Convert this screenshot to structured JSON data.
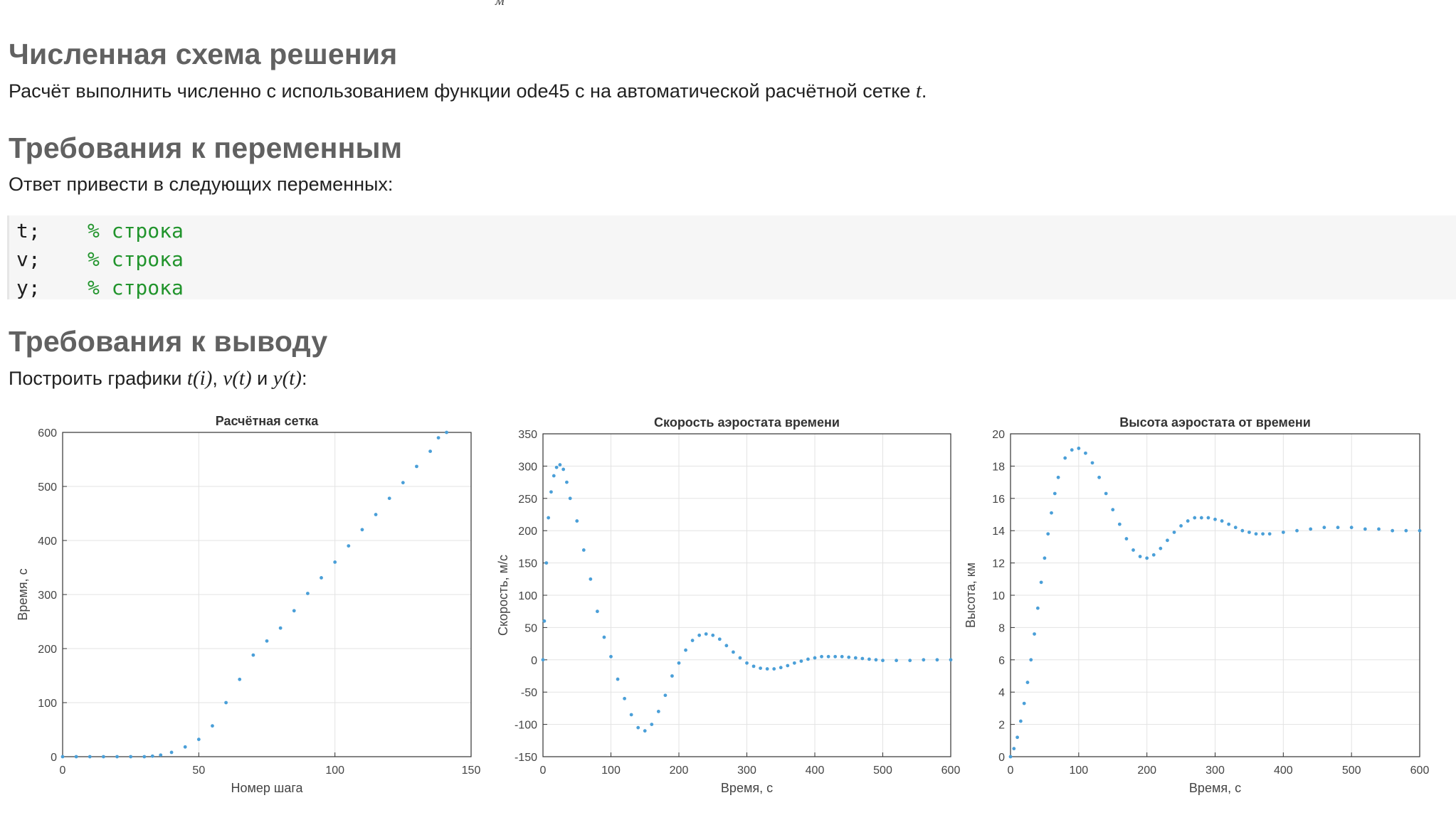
{
  "fragment": "м",
  "sections": [
    {
      "title": "Численная схема решения"
    },
    {
      "title": "Требования к переменным"
    },
    {
      "title": "Требования к выводу"
    }
  ],
  "scheme_text": {
    "before": "Расчёт выполнить численно с использованием функции ode45 с на автоматической расчётной сетке ",
    "var": "t",
    "after": "."
  },
  "vars_text": "Ответ привести в следующих переменных:",
  "code_lines": [
    {
      "var": "t;",
      "comment": "% строка"
    },
    {
      "var": "v;",
      "comment": "% строка"
    },
    {
      "var": "y;",
      "comment": "% строка"
    }
  ],
  "output_text": {
    "before": "Построить графики ",
    "m1": "t(i)",
    "sep1": ", ",
    "m2": "v(t)",
    "sep2": " и ",
    "m3": "y(t)",
    "after": ":"
  },
  "accent_color": "#4a9fd8",
  "chart_data": [
    {
      "type": "scatter",
      "title": "Расчётная сетка",
      "xlabel": "Номер шага",
      "ylabel": "Время, с",
      "xlim": [
        0,
        150
      ],
      "ylim": [
        0,
        600
      ],
      "xticks": [
        0,
        50,
        100,
        150
      ],
      "yticks": [
        0,
        100,
        200,
        300,
        400,
        500,
        600
      ],
      "grid": true,
      "series": [
        {
          "points": [
            [
              0,
              0
            ],
            [
              5,
              0
            ],
            [
              10,
              0
            ],
            [
              15,
              0
            ],
            [
              20,
              0
            ],
            [
              25,
              0
            ],
            [
              30,
              0
            ],
            [
              33,
              1
            ],
            [
              36,
              3
            ],
            [
              40,
              8
            ],
            [
              45,
              18
            ],
            [
              50,
              32
            ],
            [
              55,
              57
            ],
            [
              60,
              100
            ],
            [
              65,
              143
            ],
            [
              70,
              188
            ],
            [
              75,
              214
            ],
            [
              80,
              238
            ],
            [
              85,
              270
            ],
            [
              90,
              302
            ],
            [
              95,
              331
            ],
            [
              100,
              360
            ],
            [
              105,
              390
            ],
            [
              110,
              420
            ],
            [
              115,
              448
            ],
            [
              120,
              478
            ],
            [
              125,
              507
            ],
            [
              130,
              537
            ],
            [
              135,
              565
            ],
            [
              138,
              590
            ],
            [
              141,
              600
            ]
          ]
        }
      ]
    },
    {
      "type": "scatter",
      "title": "Скорость аэростата времени",
      "xlabel": "Время, с",
      "ylabel": "Скорость, м/с",
      "xlim": [
        0,
        600
      ],
      "ylim": [
        -150,
        350
      ],
      "xticks": [
        0,
        100,
        200,
        300,
        400,
        500,
        600
      ],
      "yticks": [
        -150,
        -100,
        -50,
        0,
        50,
        100,
        150,
        200,
        250,
        300,
        350
      ],
      "grid": true,
      "series": [
        {
          "points": [
            [
              0,
              0
            ],
            [
              2,
              60
            ],
            [
              5,
              150
            ],
            [
              8,
              220
            ],
            [
              12,
              260
            ],
            [
              16,
              285
            ],
            [
              20,
              298
            ],
            [
              25,
              302
            ],
            [
              30,
              295
            ],
            [
              35,
              275
            ],
            [
              40,
              250
            ],
            [
              50,
              215
            ],
            [
              60,
              170
            ],
            [
              70,
              125
            ],
            [
              80,
              75
            ],
            [
              90,
              35
            ],
            [
              100,
              5
            ],
            [
              110,
              -30
            ],
            [
              120,
              -60
            ],
            [
              130,
              -85
            ],
            [
              140,
              -105
            ],
            [
              150,
              -110
            ],
            [
              160,
              -100
            ],
            [
              170,
              -80
            ],
            [
              180,
              -55
            ],
            [
              190,
              -25
            ],
            [
              200,
              -5
            ],
            [
              210,
              15
            ],
            [
              220,
              30
            ],
            [
              230,
              38
            ],
            [
              240,
              40
            ],
            [
              250,
              38
            ],
            [
              260,
              32
            ],
            [
              270,
              22
            ],
            [
              280,
              12
            ],
            [
              290,
              3
            ],
            [
              300,
              -5
            ],
            [
              310,
              -10
            ],
            [
              320,
              -13
            ],
            [
              330,
              -14
            ],
            [
              340,
              -14
            ],
            [
              350,
              -12
            ],
            [
              360,
              -9
            ],
            [
              370,
              -5
            ],
            [
              380,
              -2
            ],
            [
              390,
              1
            ],
            [
              400,
              3
            ],
            [
              410,
              5
            ],
            [
              420,
              5
            ],
            [
              430,
              5
            ],
            [
              440,
              5
            ],
            [
              450,
              4
            ],
            [
              460,
              3
            ],
            [
              470,
              2
            ],
            [
              480,
              1
            ],
            [
              490,
              0
            ],
            [
              500,
              -1
            ],
            [
              520,
              -1
            ],
            [
              540,
              -1
            ],
            [
              560,
              0
            ],
            [
              580,
              0
            ],
            [
              600,
              0
            ]
          ]
        }
      ]
    },
    {
      "type": "scatter",
      "title": "Высота аэростата от времени",
      "xlabel": "Время, с",
      "ylabel": "Высота, км",
      "xlim": [
        0,
        600
      ],
      "ylim": [
        0,
        20
      ],
      "xticks": [
        0,
        100,
        200,
        300,
        400,
        500,
        600
      ],
      "yticks": [
        0,
        2,
        4,
        6,
        8,
        10,
        12,
        14,
        16,
        18,
        20
      ],
      "grid": true,
      "series": [
        {
          "points": [
            [
              0,
              0
            ],
            [
              5,
              0.5
            ],
            [
              10,
              1.2
            ],
            [
              15,
              2.2
            ],
            [
              20,
              3.3
            ],
            [
              25,
              4.6
            ],
            [
              30,
              6.0
            ],
            [
              35,
              7.6
            ],
            [
              40,
              9.2
            ],
            [
              45,
              10.8
            ],
            [
              50,
              12.3
            ],
            [
              55,
              13.8
            ],
            [
              60,
              15.1
            ],
            [
              65,
              16.3
            ],
            [
              70,
              17.3
            ],
            [
              80,
              18.5
            ],
            [
              90,
              19.0
            ],
            [
              100,
              19.1
            ],
            [
              110,
              18.8
            ],
            [
              120,
              18.2
            ],
            [
              130,
              17.3
            ],
            [
              140,
              16.3
            ],
            [
              150,
              15.3
            ],
            [
              160,
              14.4
            ],
            [
              170,
              13.5
            ],
            [
              180,
              12.8
            ],
            [
              190,
              12.4
            ],
            [
              200,
              12.3
            ],
            [
              210,
              12.5
            ],
            [
              220,
              12.9
            ],
            [
              230,
              13.4
            ],
            [
              240,
              13.9
            ],
            [
              250,
              14.3
            ],
            [
              260,
              14.6
            ],
            [
              270,
              14.8
            ],
            [
              280,
              14.8
            ],
            [
              290,
              14.8
            ],
            [
              300,
              14.7
            ],
            [
              310,
              14.6
            ],
            [
              320,
              14.4
            ],
            [
              330,
              14.2
            ],
            [
              340,
              14.0
            ],
            [
              350,
              13.9
            ],
            [
              360,
              13.8
            ],
            [
              370,
              13.8
            ],
            [
              380,
              13.8
            ],
            [
              400,
              13.9
            ],
            [
              420,
              14.0
            ],
            [
              440,
              14.1
            ],
            [
              460,
              14.2
            ],
            [
              480,
              14.2
            ],
            [
              500,
              14.2
            ],
            [
              520,
              14.1
            ],
            [
              540,
              14.1
            ],
            [
              560,
              14.0
            ],
            [
              580,
              14.0
            ],
            [
              600,
              14.0
            ]
          ]
        }
      ]
    }
  ]
}
